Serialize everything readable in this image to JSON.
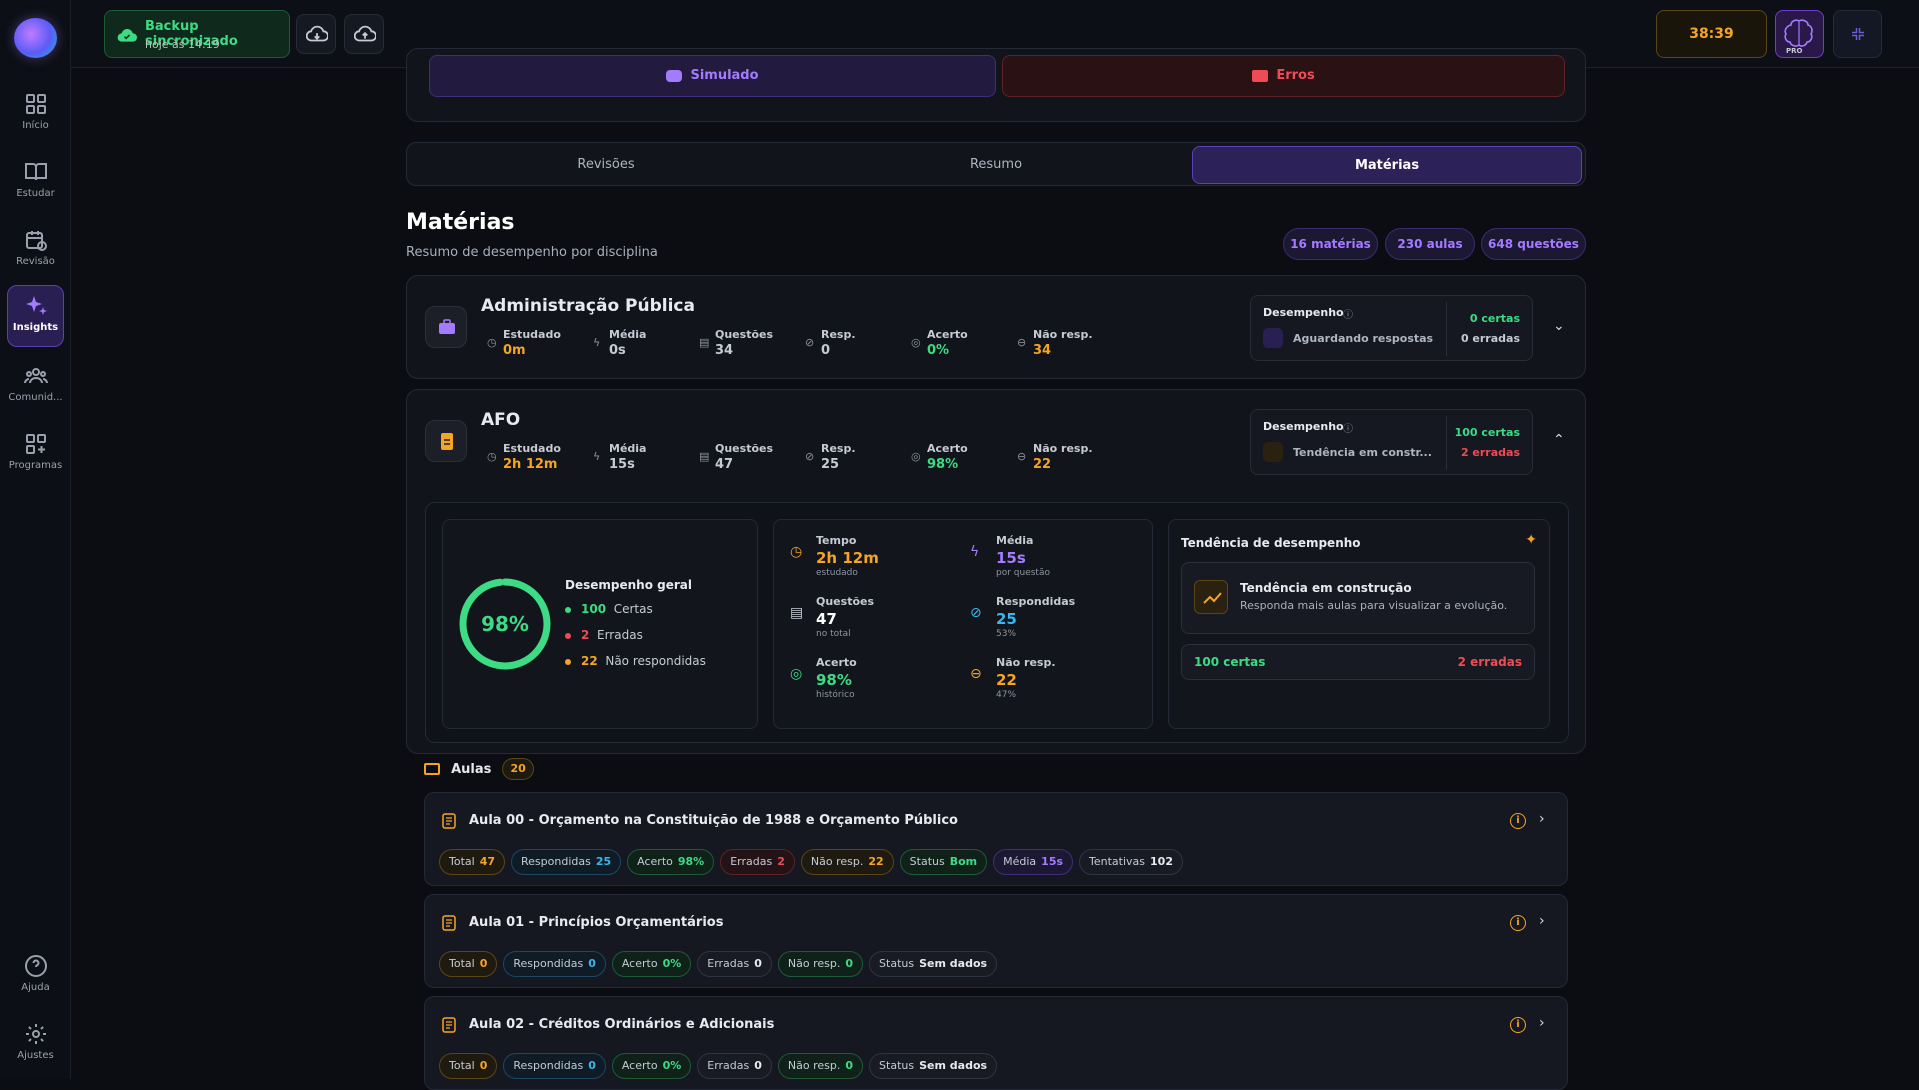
{
  "sidebar": {
    "items": [
      {
        "label": "Início",
        "icon": "grid-icon"
      },
      {
        "label": "Estudar",
        "icon": "book-icon"
      },
      {
        "label": "Revisão",
        "icon": "calendar-refresh-icon"
      },
      {
        "label": "Insights",
        "icon": "sparkles-icon"
      },
      {
        "label": "Comunid...",
        "icon": "users-icon"
      },
      {
        "label": "Programas",
        "icon": "grid-plus-icon"
      }
    ],
    "bottom": [
      {
        "label": "Ajuda",
        "icon": "help-icon"
      },
      {
        "label": "Ajustes",
        "icon": "gear-icon"
      }
    ]
  },
  "topbar": {
    "backup_title": "Backup sincronizado",
    "backup_time": "hoje às 14:19",
    "timer": "38:39",
    "pro_label": "PRO"
  },
  "actions": {
    "simulado": "Simulado",
    "erros": "Erros"
  },
  "tabs": [
    "Revisões",
    "Resumo",
    "Matérias"
  ],
  "page": {
    "title": "Matérias",
    "subtitle": "Resumo de desempenho por disciplina",
    "pills": [
      "16 matérias",
      "230 aulas",
      "648 questões"
    ]
  },
  "labels": {
    "estudado": "Estudado",
    "media": "Média",
    "questoes": "Questões",
    "resp": "Resp.",
    "acerto": "Acerto",
    "nao_resp": "Não resp.",
    "desempenho": "Desempenho"
  },
  "subjects": [
    {
      "name": "Administração Pública",
      "estudado": "0m",
      "media": "0s",
      "questoes": "34",
      "resp": "0",
      "acerto": "0%",
      "nao_resp": "34",
      "status": "Aguardando respostas",
      "certas": "0 certas",
      "erradas": "0 erradas"
    },
    {
      "name": "AFO",
      "estudado": "2h 12m",
      "media": "15s",
      "questoes": "47",
      "resp": "25",
      "acerto": "98%",
      "nao_resp": "22",
      "status": "Tendência em constr...",
      "certas": "100 certas",
      "erradas": "2 erradas"
    }
  ],
  "afo_detail": {
    "percent": "98%",
    "percent_value": 0.98,
    "geral_title": "Desempenho geral",
    "certas_n": "100",
    "certas_l": "Certas",
    "erradas_n": "2",
    "erradas_l": "Erradas",
    "nr_n": "22",
    "nr_l": "Não respondidas",
    "tempo_k": "Tempo",
    "tempo_v": "2h 12m",
    "tempo_s": "estudado",
    "media_k": "Média",
    "media_v": "15s",
    "media_s": "por questão",
    "quest_k": "Questões",
    "quest_v": "47",
    "quest_s": "no total",
    "respond_k": "Respondidas",
    "respond_v": "25",
    "respond_s": "53%",
    "acerto_k": "Acerto",
    "acerto_v": "98%",
    "acerto_s": "histórico",
    "naoresp_k": "Não resp.",
    "naoresp_v": "22",
    "naoresp_s": "47%",
    "trend_title": "Tendência de desempenho",
    "trend_box_title": "Tendência em construção",
    "trend_box_sub": "Responda mais aulas para visualizar a evolução.",
    "trend_certas": "100 certas",
    "trend_erradas": "2 erradas"
  },
  "aulas": {
    "label": "Aulas",
    "count": "20",
    "items": [
      {
        "title": "Aula 00 - Orçamento na Constituição de 1988 e Orçamento Público",
        "total": "47",
        "respondidas": "25",
        "acerto": "98%",
        "erradas": "2",
        "nao_resp": "22",
        "status": "Bom",
        "media": "15s",
        "tentativas": "102"
      },
      {
        "title": "Aula 01 - Princípios Orçamentários",
        "total": "0",
        "respondidas": "0",
        "acerto": "0%",
        "erradas": "0",
        "nao_resp": "0",
        "status": "Sem dados"
      },
      {
        "title": "Aula 02 - Créditos Ordinários e Adicionais",
        "total": "0",
        "respondidas": "0",
        "acerto": "0%",
        "erradas": "0",
        "nao_resp": "0",
        "status": "Sem dados"
      }
    ]
  },
  "tag_labels": {
    "total": "Total",
    "respondidas": "Respondidas",
    "acerto": "Acerto",
    "erradas": "Erradas",
    "nao_resp": "Não resp.",
    "status": "Status",
    "media": "Média",
    "tentativas": "Tentativas"
  },
  "colors": {
    "accent": "#a47bff",
    "green": "#3ddc84",
    "orange": "#f5a524",
    "red": "#ef4b55",
    "blue": "#39b6f0"
  }
}
